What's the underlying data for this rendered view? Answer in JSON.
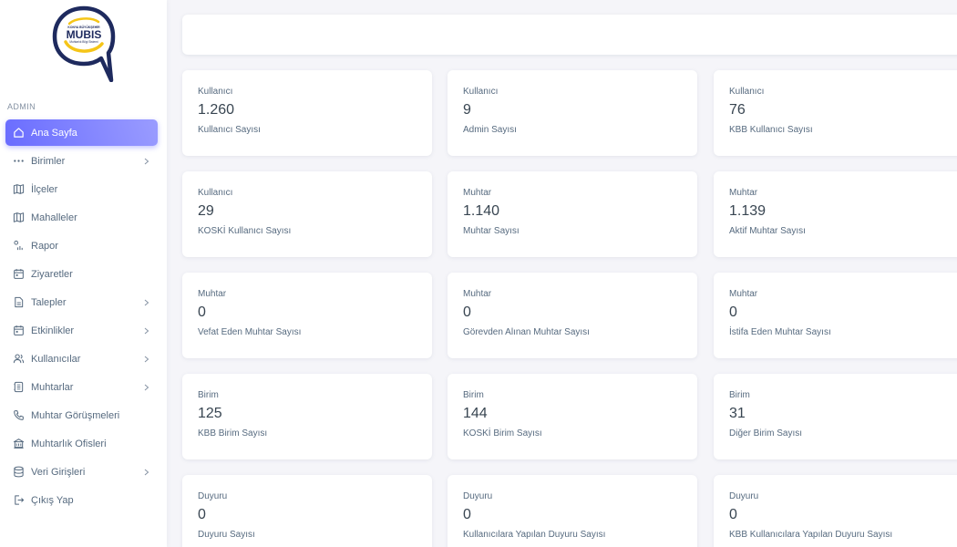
{
  "logo": {
    "top_text": "KONYA BÜYÜKŞEHİR",
    "brand": "MUBIS",
    "sub_text": "Muhtarlık Bilgi Sistemi"
  },
  "colors": {
    "accent": "#696cff",
    "logo_navy": "#1e2a5e",
    "logo_yellow": "#f5c518"
  },
  "sidebar": {
    "section_label": "ADMIN",
    "items": [
      {
        "label": "Ana Sayfa",
        "icon": "home-icon",
        "active": true,
        "has_arrow": false
      },
      {
        "label": "Birimler",
        "icon": "dots-icon",
        "active": false,
        "has_arrow": true
      },
      {
        "label": "İlçeler",
        "icon": "map-icon",
        "active": false,
        "has_arrow": false
      },
      {
        "label": "Mahalleler",
        "icon": "map-icon",
        "active": false,
        "has_arrow": false
      },
      {
        "label": "Rapor",
        "icon": "report-icon",
        "active": false,
        "has_arrow": false
      },
      {
        "label": "Ziyaretler",
        "icon": "calendar-icon",
        "active": false,
        "has_arrow": false
      },
      {
        "label": "Talepler",
        "icon": "file-icon",
        "active": false,
        "has_arrow": true
      },
      {
        "label": "Etkinlikler",
        "icon": "calendar-icon",
        "active": false,
        "has_arrow": true
      },
      {
        "label": "Kullanıcılar",
        "icon": "users-icon",
        "active": false,
        "has_arrow": true
      },
      {
        "label": "Muhtarlar",
        "icon": "id-badge-icon",
        "active": false,
        "has_arrow": true
      },
      {
        "label": "Muhtar Görüşmeleri",
        "icon": "phone-icon",
        "active": false,
        "has_arrow": false
      },
      {
        "label": "Muhtarlık Ofisleri",
        "icon": "building-icon",
        "active": false,
        "has_arrow": false
      },
      {
        "label": "Veri Girişleri",
        "icon": "database-icon",
        "active": false,
        "has_arrow": true
      },
      {
        "label": "Çıkış Yap",
        "icon": "logout-icon",
        "active": false,
        "has_arrow": false
      }
    ]
  },
  "cards": [
    {
      "category": "Kullanıcı",
      "value": "1.260",
      "label": "Kullanıcı Sayısı"
    },
    {
      "category": "Kullanıcı",
      "value": "9",
      "label": "Admin Sayısı"
    },
    {
      "category": "Kullanıcı",
      "value": "76",
      "label": "KBB Kullanıcı Sayısı"
    },
    {
      "category": "Kullanıcı",
      "value": "29",
      "label": "KOSKİ Kullanıcı Sayısı"
    },
    {
      "category": "Muhtar",
      "value": "1.140",
      "label": "Muhtar Sayısı"
    },
    {
      "category": "Muhtar",
      "value": "1.139",
      "label": "Aktif Muhtar Sayısı"
    },
    {
      "category": "Muhtar",
      "value": "0",
      "label": "Vefat Eden Muhtar Sayısı"
    },
    {
      "category": "Muhtar",
      "value": "0",
      "label": "Görevden Alınan Muhtar Sayısı"
    },
    {
      "category": "Muhtar",
      "value": "0",
      "label": "İstifa Eden Muhtar Sayısı"
    },
    {
      "category": "Birim",
      "value": "125",
      "label": "KBB Birim Sayısı"
    },
    {
      "category": "Birim",
      "value": "144",
      "label": "KOSKİ Birim Sayısı"
    },
    {
      "category": "Birim",
      "value": "31",
      "label": "Diğer Birim Sayısı"
    },
    {
      "category": "Duyuru",
      "value": "0",
      "label": "Duyuru Sayısı"
    },
    {
      "category": "Duyuru",
      "value": "0",
      "label": "Kullanıcılara Yapılan Duyuru Sayısı"
    },
    {
      "category": "Duyuru",
      "value": "0",
      "label": "KBB Kullanıcılara Yapılan Duyuru Sayısı"
    }
  ]
}
